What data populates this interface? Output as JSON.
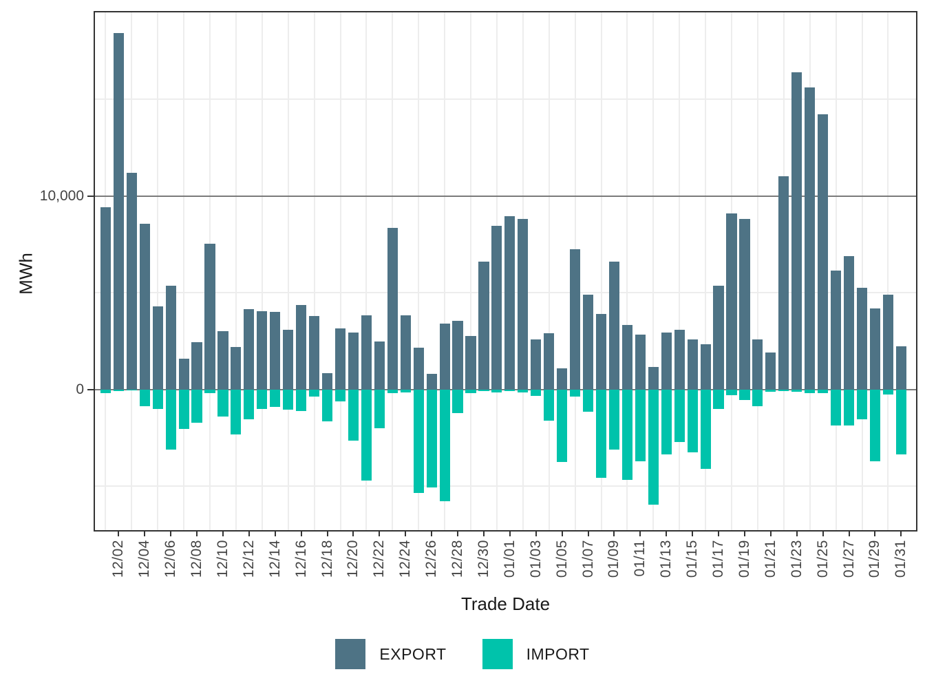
{
  "chart_data": {
    "type": "bar",
    "title": "",
    "xlabel": "Trade Date",
    "ylabel": "MWh",
    "grid": "major horizontal dark at breaks, minor light gridlines, light vertical gridlines between ticks",
    "legend_position": "bottom",
    "ylim": [
      -7260,
      19480
    ],
    "y_ticks": [
      {
        "value": 0,
        "label": "0"
      },
      {
        "value": 10000,
        "label": "10,000"
      }
    ],
    "y_minor": [
      -5000,
      5000,
      15000
    ],
    "x": [
      "12/01",
      "12/02",
      "12/03",
      "12/04",
      "12/05",
      "12/06",
      "12/07",
      "12/08",
      "12/09",
      "12/10",
      "12/11",
      "12/12",
      "12/13",
      "12/14",
      "12/15",
      "12/16",
      "12/17",
      "12/18",
      "12/19",
      "12/20",
      "12/21",
      "12/22",
      "12/23",
      "12/24",
      "12/25",
      "12/26",
      "12/27",
      "12/28",
      "12/29",
      "12/30",
      "12/31",
      "01/01",
      "01/02",
      "01/03",
      "01/04",
      "01/05",
      "01/06",
      "01/07",
      "01/08",
      "01/09",
      "01/10",
      "01/11",
      "01/12",
      "01/13",
      "01/14",
      "01/15",
      "01/16",
      "01/17",
      "01/18",
      "01/19",
      "01/20",
      "01/21",
      "01/22",
      "01/23",
      "01/24",
      "01/25",
      "01/26",
      "01/27",
      "01/28",
      "01/29",
      "01/30",
      "01/31"
    ],
    "x_tick_labels": [
      "12/02",
      "12/04",
      "12/06",
      "12/08",
      "12/10",
      "12/12",
      "12/14",
      "12/16",
      "12/18",
      "12/20",
      "12/22",
      "12/24",
      "12/26",
      "12/28",
      "12/30",
      "01/01",
      "01/03",
      "01/05",
      "01/07",
      "01/09",
      "01/11",
      "01/13",
      "01/15",
      "01/17",
      "01/19",
      "01/21",
      "01/23",
      "01/25",
      "01/27",
      "01/29",
      "01/31"
    ],
    "series": [
      {
        "name": "EXPORT",
        "color": "#4e7385",
        "values": [
          9400,
          18400,
          11200,
          8550,
          4300,
          5350,
          1600,
          2450,
          7550,
          3000,
          2200,
          4150,
          4050,
          4000,
          3100,
          4350,
          3800,
          850,
          3150,
          2950,
          3850,
          2500,
          8350,
          3850,
          2150,
          800,
          3400,
          3550,
          2750,
          6600,
          8450,
          8950,
          8800,
          2600,
          2900,
          1100,
          7250,
          4900,
          3900,
          6600,
          3350,
          2850,
          1150,
          2950,
          3100,
          2600,
          2350,
          5350,
          9100,
          8800,
          2600,
          1900,
          11000,
          16400,
          15600,
          14200,
          6150,
          6900,
          5250,
          4200,
          4900,
          2250
        ]
      },
      {
        "name": "IMPORT",
        "color": "#00c3ab",
        "values": [
          -175,
          -80,
          -30,
          -850,
          -1000,
          -3100,
          -2050,
          -1700,
          -175,
          -1400,
          -2300,
          -1550,
          -1000,
          -900,
          -1050,
          -1100,
          -370,
          -1650,
          -600,
          -2650,
          -4700,
          -2000,
          -200,
          -165,
          -5350,
          -5050,
          -5750,
          -1200,
          -200,
          -60,
          -140,
          -60,
          -160,
          -340,
          -1600,
          -3750,
          -370,
          -1150,
          -4550,
          -3100,
          -4650,
          -3700,
          -5950,
          -3350,
          -2700,
          -3250,
          -4100,
          -1000,
          -280,
          -550,
          -850,
          -115,
          -60,
          -120,
          -175,
          -175,
          -1850,
          -1850,
          -1550,
          -3700,
          -250,
          -3350
        ]
      }
    ],
    "colors": {
      "export": "#4e7385",
      "import": "#00c3ab",
      "grid_major": "#7a7a7a",
      "grid_minor": "#ededed",
      "panel_border": "#333333",
      "tick_label": "#444444",
      "axis_title": "#1a1a1a",
      "background": "#ffffff"
    }
  }
}
